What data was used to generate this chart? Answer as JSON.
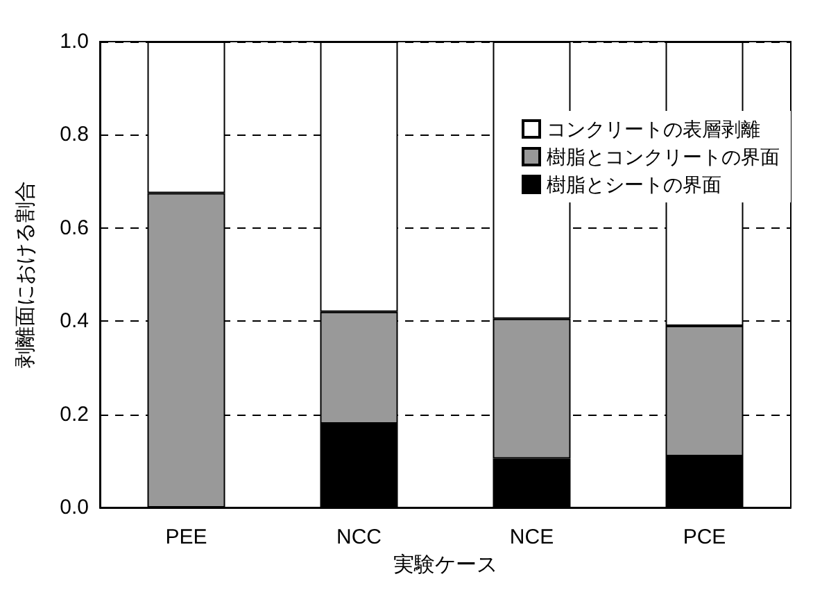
{
  "chart_data": {
    "type": "bar",
    "stacked": true,
    "xlabel": "実験ケース",
    "ylabel": "剥離面における割合",
    "categories": [
      "PEE",
      "NCC",
      "NCE",
      "PCE"
    ],
    "series": [
      {
        "name": "樹脂とシートの界面",
        "color": "#000000",
        "values": [
          0,
          0.18,
          0.105,
          0.11
        ]
      },
      {
        "name": "樹脂とコンクリートの界面",
        "color": "#999999",
        "values": [
          0.675,
          0.24,
          0.3,
          0.28
        ]
      },
      {
        "name": "コンクリートの表層剥離",
        "color": "#ffffff",
        "values": [
          0.325,
          0.58,
          0.595,
          0.61
        ]
      }
    ],
    "ylim": [
      0,
      1
    ],
    "yticks": [
      {
        "value": 0,
        "label": "0.0"
      },
      {
        "value": 0.2,
        "label": "0.2"
      },
      {
        "value": 0.4,
        "label": "0.4"
      },
      {
        "value": 0.6,
        "label": "0.6"
      },
      {
        "value": 0.8,
        "label": "0.8"
      },
      {
        "value": 1,
        "label": "1.0"
      }
    ],
    "grid": "y",
    "legend": "top right"
  }
}
